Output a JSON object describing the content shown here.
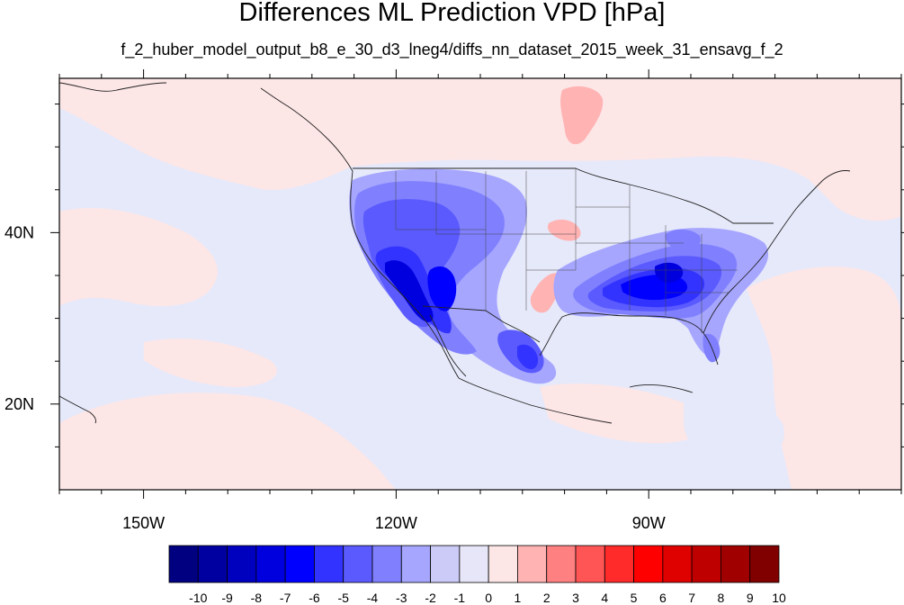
{
  "title": "Differences ML Prediction VPD [hPa]",
  "subtitle": "f_2_huber_model_output_b8_e_30_d3_lneg4/diffs_nn_dataset_2015_week_31_ensavg_f_2",
  "map": {
    "lon_range": [
      -160,
      -60
    ],
    "lat_range": [
      10,
      58
    ],
    "lon_major_ticks": [
      -150,
      -120,
      -90
    ],
    "lon_labels": [
      "150W",
      "120W",
      "90W"
    ],
    "lon_minor_ticks": [
      -160,
      -155,
      -145,
      -140,
      -135,
      -130,
      -125,
      -115,
      -110,
      -105,
      -100,
      -95,
      -85,
      -80,
      -75,
      -70,
      -65,
      -60
    ],
    "lat_major_ticks": [
      20,
      40
    ],
    "lat_labels": [
      "20N",
      "40N"
    ],
    "lat_minor_ticks": [
      15,
      25,
      30,
      35,
      45,
      50,
      55
    ],
    "background_colors": {
      "near_zero_negative": "#e6e9fa",
      "near_zero_positive": "#fde6e6"
    }
  },
  "colorbar": {
    "labels": [
      "-10",
      "-9",
      "-8",
      "-7",
      "-6",
      "-5",
      "-4",
      "-3",
      "-2",
      "-1",
      "0",
      "1",
      "2",
      "3",
      "4",
      "5",
      "6",
      "7",
      "8",
      "9",
      "10"
    ],
    "colors": [
      "#000080",
      "#0000a0",
      "#0000bf",
      "#0000df",
      "#0000ff",
      "#3333ff",
      "#5a5aff",
      "#8080ff",
      "#a6a6ff",
      "#cccaf7",
      "#e6e6f8",
      "#fde6e6",
      "#ffb3b3",
      "#ff8080",
      "#ff5555",
      "#ff2a2a",
      "#ff0000",
      "#df0000",
      "#bf0000",
      "#a00000",
      "#800000"
    ]
  }
}
